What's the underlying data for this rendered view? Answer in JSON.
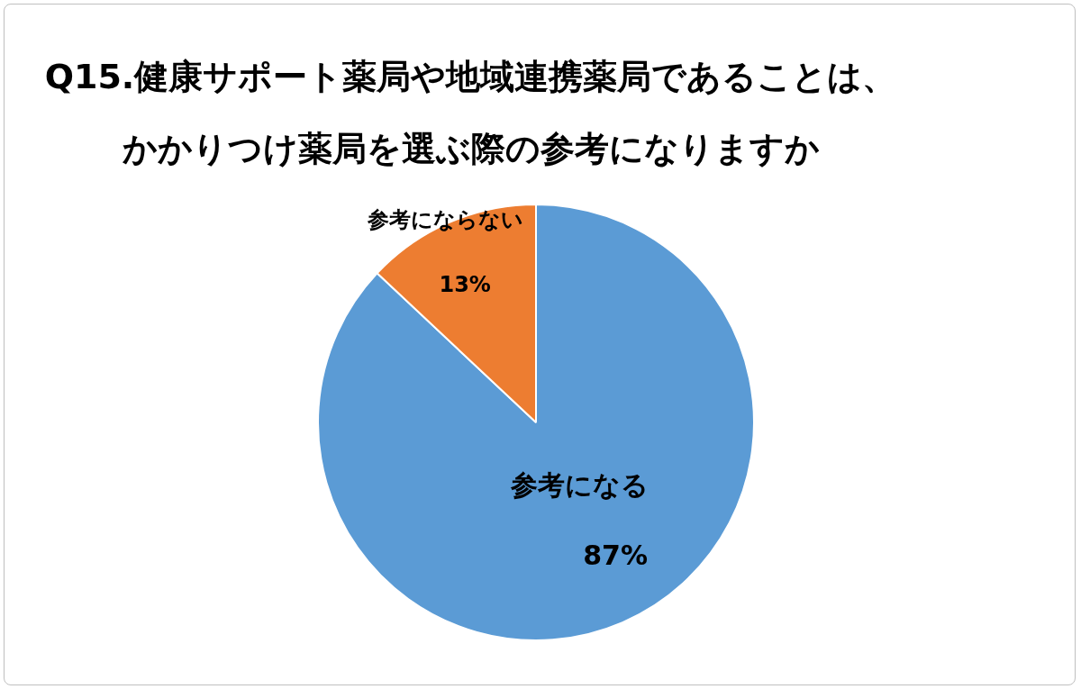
{
  "chart_data": {
    "type": "pie",
    "title": "Q15.健康サポート薬局や地域連携薬局であることは、かかりつけ薬局を選ぶ際の参考になりますか",
    "categories": [
      "参考になる",
      "参考にならない"
    ],
    "values": [
      87,
      13
    ],
    "colors": [
      "#5b9bd5",
      "#ed7d31"
    ],
    "value_labels": [
      "87%",
      "13%"
    ],
    "legend": false
  }
}
